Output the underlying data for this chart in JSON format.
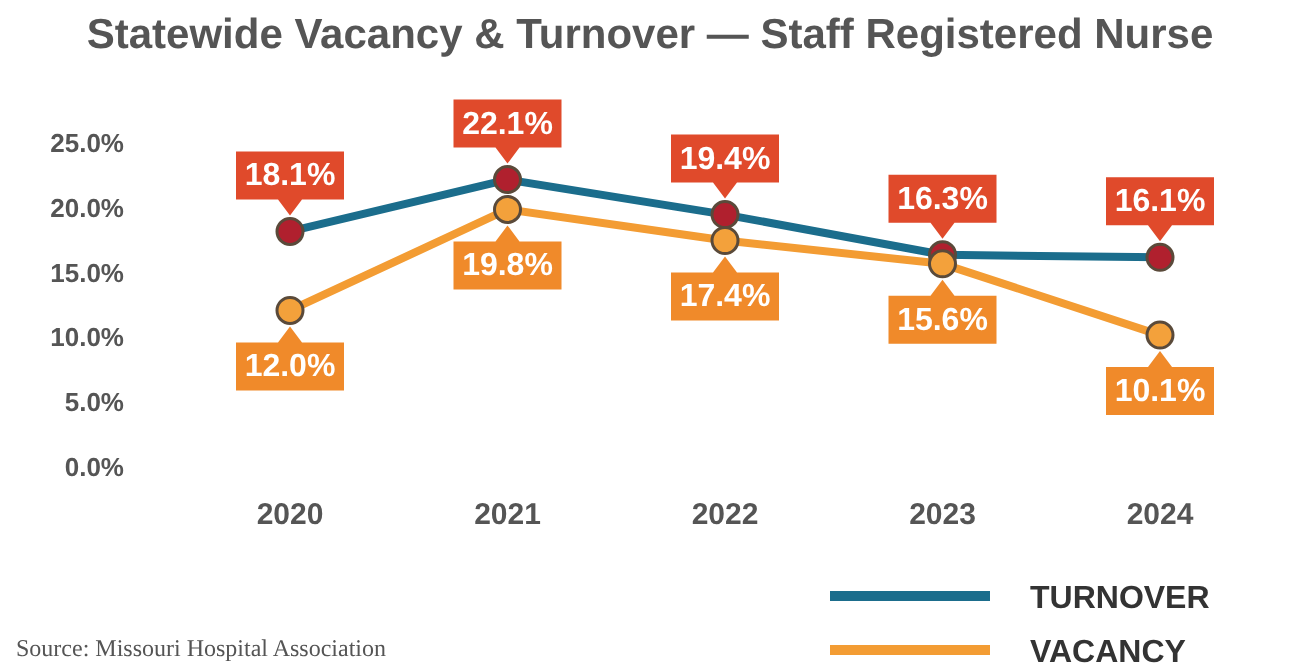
{
  "chart_data": {
    "type": "line",
    "title": "Statewide Vacancy & Turnover — Staff Registered Nurse",
    "categories": [
      "2020",
      "2021",
      "2022",
      "2023",
      "2024"
    ],
    "series": [
      {
        "name": "TURNOVER",
        "color": "#1b6d8c",
        "values": [
          18.1,
          22.1,
          19.4,
          16.3,
          16.1
        ],
        "value_labels": [
          "18.1%",
          "22.1%",
          "19.4%",
          "16.3%",
          "16.1%"
        ]
      },
      {
        "name": "VACANCY",
        "color": "#f39c33",
        "values": [
          12.0,
          19.8,
          17.4,
          15.6,
          10.1
        ],
        "value_labels": [
          "12.0%",
          "19.8%",
          "17.4%",
          "15.6%",
          "10.1%"
        ]
      }
    ],
    "ylim": [
      0,
      25
    ],
    "yticks": [
      {
        "value": 0,
        "label": "0.0%"
      },
      {
        "value": 5,
        "label": "5.0%"
      },
      {
        "value": 10,
        "label": "10.0%"
      },
      {
        "value": 15,
        "label": "15.0%"
      },
      {
        "value": 20,
        "label": "20.0%"
      },
      {
        "value": 25,
        "label": "25.0%"
      }
    ],
    "marker": "circle",
    "line_style": "solid",
    "grid": false,
    "legend": "bottom right",
    "annotations": [
      "Source: Missouri Hospital Association"
    ]
  }
}
